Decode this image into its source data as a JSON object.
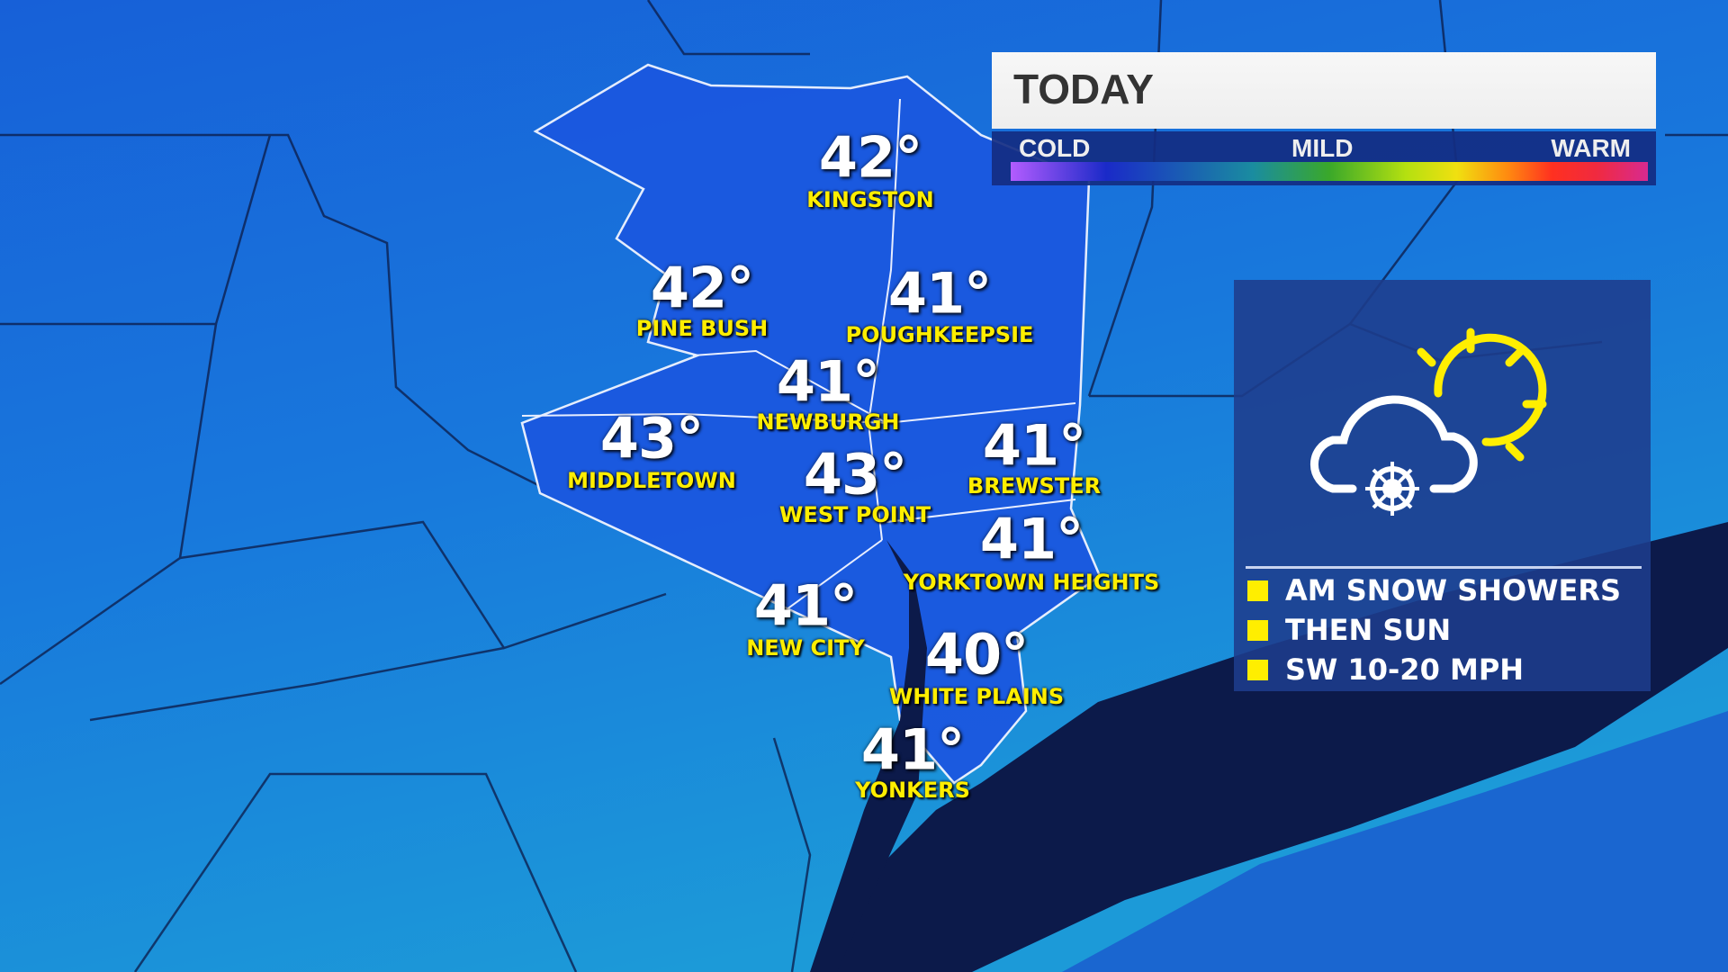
{
  "header": {
    "title": "TODAY"
  },
  "temperature_scale": {
    "labels": [
      "COLD",
      "MILD",
      "WARM"
    ]
  },
  "cities": [
    {
      "name": "KINGSTON",
      "temp": "42°"
    },
    {
      "name": "PINE BUSH",
      "temp": "42°"
    },
    {
      "name": "POUGHKEEPSIE",
      "temp": "41°"
    },
    {
      "name": "NEWBURGH",
      "temp": "41°"
    },
    {
      "name": "MIDDLETOWN",
      "temp": "43°"
    },
    {
      "name": "WEST POINT",
      "temp": "43°"
    },
    {
      "name": "BREWSTER",
      "temp": "41°"
    },
    {
      "name": "YORKTOWN HEIGHTS",
      "temp": "41°"
    },
    {
      "name": "NEW CITY",
      "temp": "41°"
    },
    {
      "name": "WHITE PLAINS",
      "temp": "40°"
    },
    {
      "name": "YONKERS",
      "temp": "41°"
    }
  ],
  "forecast": {
    "icon": "cloud-snow-sun-icon",
    "items": [
      "AM SNOW SHOWERS",
      "THEN SUN",
      "SW 10-20 MPH"
    ]
  },
  "colors": {
    "label_yellow": "#ffee00",
    "panel_navy": "#1e3c8c",
    "water": "#0c1a4a"
  }
}
